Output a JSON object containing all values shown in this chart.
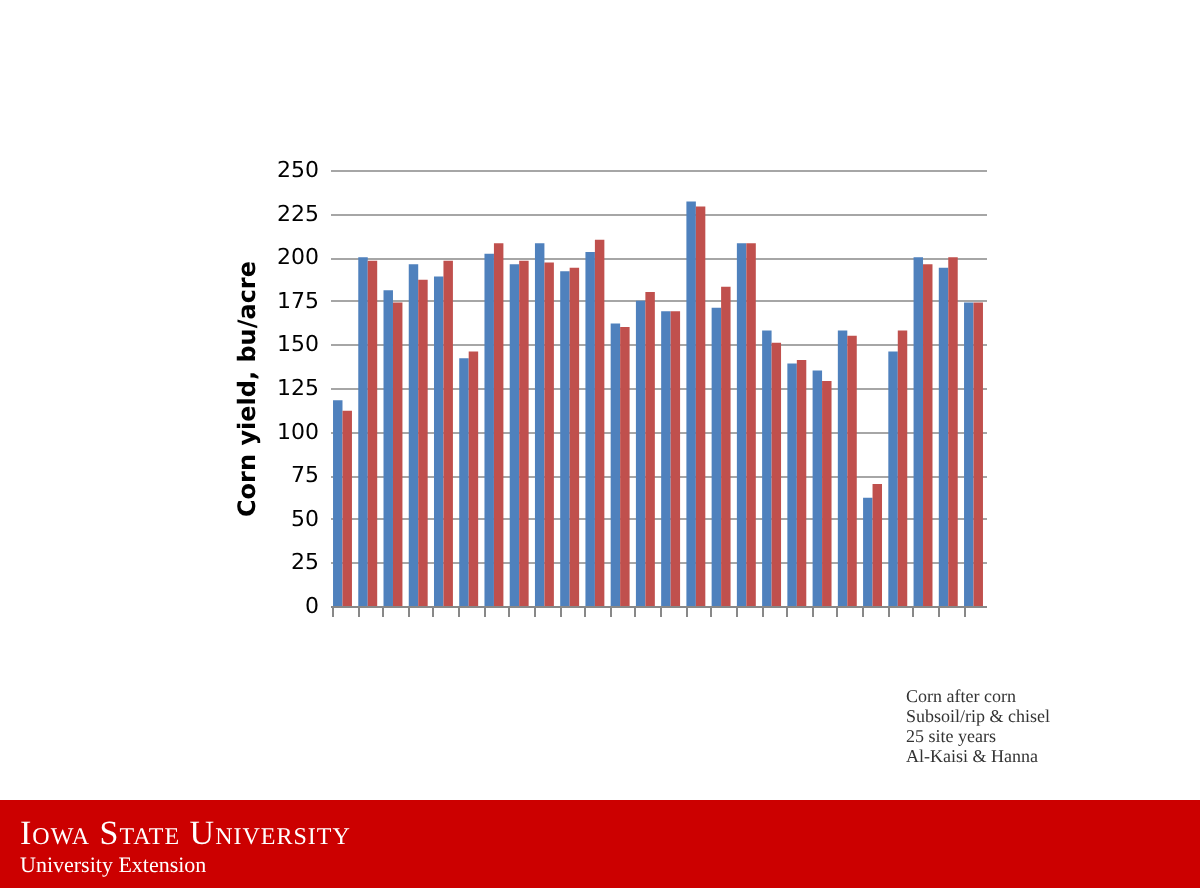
{
  "chart_data": {
    "type": "bar",
    "ylabel": "Corn yield, bu/acre",
    "categories": [
      null,
      null,
      null,
      null,
      null,
      null,
      null,
      null,
      null,
      null,
      null,
      null,
      null,
      null,
      null,
      null,
      null,
      null,
      null,
      null,
      null,
      null,
      null,
      null,
      null,
      null
    ],
    "series": [
      {
        "color": "#4f81bd",
        "values": [
          118,
          200,
          181,
          196,
          189,
          142,
          202,
          196,
          208,
          192,
          203,
          162,
          175,
          169,
          232,
          171,
          208,
          158,
          139,
          135,
          158,
          62,
          146,
          200,
          194,
          174
        ]
      },
      {
        "color": "#c0504d",
        "values": [
          112,
          198,
          174,
          187,
          198,
          146,
          208,
          198,
          197,
          194,
          210,
          160,
          180,
          169,
          229,
          183,
          208,
          151,
          141,
          129,
          155,
          70,
          158,
          196,
          200,
          174
        ]
      }
    ],
    "ylim": [
      0,
      250
    ],
    "yticks": [
      0,
      25,
      50,
      75,
      100,
      125,
      150,
      175,
      200,
      225,
      250
    ],
    "grid": "y",
    "tick_labels": "y",
    "annotations": [
      "Corn after corn",
      "Subsoil/rip & chisel",
      "25 site years",
      "Al-Kaisi & Hanna",
      "Iowa State University",
      "University Extension"
    ]
  }
}
